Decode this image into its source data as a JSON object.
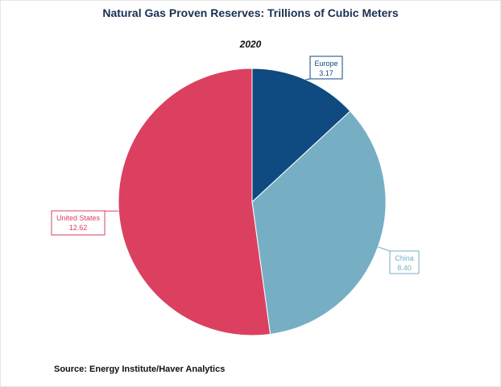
{
  "chart_data": {
    "type": "pie",
    "title": "Natural Gas Proven Reserves: Trillions of Cubic Meters",
    "subtitle": "2020",
    "slices": [
      {
        "label": "Europe",
        "value": 3.17,
        "value_label": "3.17",
        "color": "#0f4a80"
      },
      {
        "label": "China",
        "value": 8.4,
        "value_label": "8.40",
        "color": "#76afc4"
      },
      {
        "label": "United States",
        "value": 12.62,
        "value_label": "12.62",
        "color": "#db4060"
      }
    ],
    "start": "12 o'clock",
    "direction": "clockwise"
  },
  "footer": {
    "source": "Source:  Energy Institute/Haver Analytics"
  }
}
